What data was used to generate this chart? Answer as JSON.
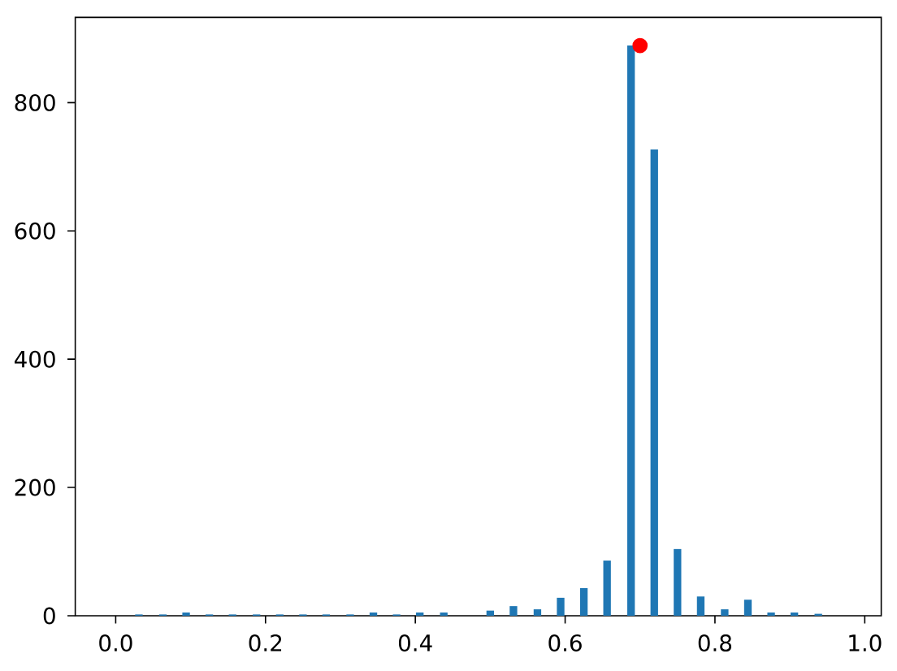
{
  "chart_data": {
    "type": "bar",
    "x": [
      0.031,
      0.063,
      0.094,
      0.125,
      0.156,
      0.188,
      0.219,
      0.25,
      0.281,
      0.313,
      0.344,
      0.375,
      0.406,
      0.438,
      0.5,
      0.531,
      0.563,
      0.594,
      0.625,
      0.656,
      0.688,
      0.719,
      0.75,
      0.781,
      0.813,
      0.844,
      0.875,
      0.906,
      0.938
    ],
    "series": [
      {
        "color": "#1f77b4",
        "values": [
          2,
          2,
          5,
          2,
          2,
          2,
          2,
          2,
          2,
          2,
          5,
          2,
          5,
          5,
          8,
          15,
          10,
          28,
          43,
          86,
          889,
          727,
          104,
          30,
          10,
          25,
          5,
          5,
          3
        ]
      },
      {
        "type": "scatter",
        "color": "#ff0000",
        "marker": "circle",
        "x": [
          0.7
        ],
        "values": [
          889
        ]
      }
    ],
    "xlim": [
      -0.054,
      1.022
    ],
    "ylim": [
      0,
      933
    ],
    "xticks": [
      {
        "value": 0,
        "label": "0.0"
      },
      0.2,
      0.4,
      0.6,
      0.8,
      {
        "value": 1,
        "label": "1.0"
      }
    ],
    "yticks": [
      0,
      200,
      400,
      600,
      800
    ]
  }
}
